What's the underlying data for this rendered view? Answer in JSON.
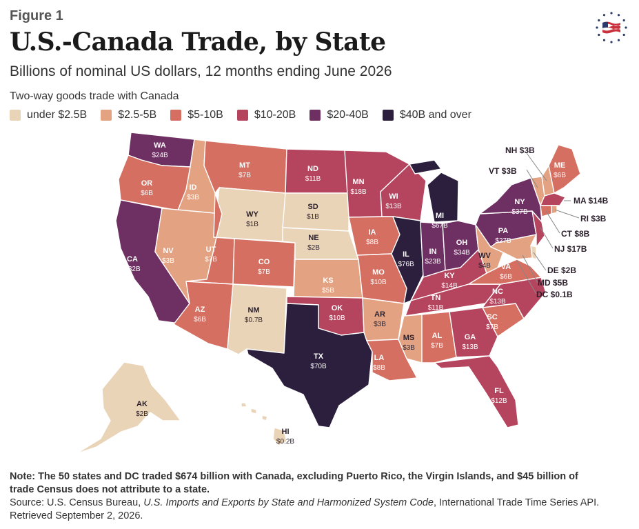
{
  "figure_label": "Figure 1",
  "title": "U.S.-Canada Trade, by State",
  "subtitle": "Billions of nominal US dollars, 12 months ending June 2026",
  "legend": {
    "title": "Two-way goods trade with Canada",
    "items": [
      {
        "label": "under $2.5B",
        "color": "#e9d4b8"
      },
      {
        "label": "$2.5-5B",
        "color": "#e3a383"
      },
      {
        "label": "$5-10B",
        "color": "#d46f61"
      },
      {
        "label": "$10-20B",
        "color": "#b5455e"
      },
      {
        "label": "$20-40B",
        "color": "#6e2f63"
      },
      {
        "label": "$40B and over",
        "color": "#2b1f3d"
      }
    ]
  },
  "logo_icon": "us-flag-seal-icon",
  "states": [
    {
      "code": "WA",
      "value": "$24B"
    },
    {
      "code": "OR",
      "value": "$6B"
    },
    {
      "code": "CA",
      "value": "$32B"
    },
    {
      "code": "ID",
      "value": "$3B"
    },
    {
      "code": "NV",
      "value": "$3B"
    },
    {
      "code": "MT",
      "value": "$7B"
    },
    {
      "code": "WY",
      "value": "$1B"
    },
    {
      "code": "UT",
      "value": "$7B"
    },
    {
      "code": "AZ",
      "value": "$6B"
    },
    {
      "code": "CO",
      "value": "$7B"
    },
    {
      "code": "NM",
      "value": "$0.7B"
    },
    {
      "code": "ND",
      "value": "$11B"
    },
    {
      "code": "SD",
      "value": "$1B"
    },
    {
      "code": "NE",
      "value": "$2B"
    },
    {
      "code": "KS",
      "value": "$5B"
    },
    {
      "code": "OK",
      "value": "$10B"
    },
    {
      "code": "TX",
      "value": "$70B"
    },
    {
      "code": "MN",
      "value": "$18B"
    },
    {
      "code": "IA",
      "value": "$8B"
    },
    {
      "code": "MO",
      "value": "$10B"
    },
    {
      "code": "AR",
      "value": "$3B"
    },
    {
      "code": "LA",
      "value": "$8B"
    },
    {
      "code": "WI",
      "value": "$13B"
    },
    {
      "code": "IL",
      "value": "$76B"
    },
    {
      "code": "MI",
      "value": "$67B"
    },
    {
      "code": "IN",
      "value": "$23B"
    },
    {
      "code": "OH",
      "value": "$34B"
    },
    {
      "code": "KY",
      "value": "$14B"
    },
    {
      "code": "TN",
      "value": "$11B"
    },
    {
      "code": "MS",
      "value": "$3B"
    },
    {
      "code": "AL",
      "value": "$7B"
    },
    {
      "code": "GA",
      "value": "$13B"
    },
    {
      "code": "FL",
      "value": "$12B"
    },
    {
      "code": "SC",
      "value": "$7B"
    },
    {
      "code": "NC",
      "value": "$13B"
    },
    {
      "code": "VA",
      "value": "$6B"
    },
    {
      "code": "WV",
      "value": "$4B"
    },
    {
      "code": "PA",
      "value": "$27B"
    },
    {
      "code": "NY",
      "value": "$37B"
    },
    {
      "code": "ME",
      "value": "$6B"
    },
    {
      "code": "AK",
      "value": "$2B"
    },
    {
      "code": "HI",
      "value": "$0.2B"
    }
  ],
  "callouts": [
    {
      "text": "NH $3B"
    },
    {
      "text": "VT $3B"
    },
    {
      "text": "MA $14B"
    },
    {
      "text": "RI $3B"
    },
    {
      "text": "CT $8B"
    },
    {
      "text": "NJ $17B"
    },
    {
      "text": "DE $2B"
    },
    {
      "text": "MD $5B"
    },
    {
      "text": "DC $0.1B"
    }
  ],
  "note": "Note: The 50 states and DC traded $674 billion with Canada, excluding Puerto Rico, the Virgin Islands, and $45 billion of trade Census does not attribute to a state.",
  "source_prefix": "Source: U.S. Census Bureau, ",
  "source_title": "U.S. Imports and Exports by State and Harmonized System Code",
  "source_suffix": ", International Trade Time Series API. Retrieved September 2, 2026."
}
